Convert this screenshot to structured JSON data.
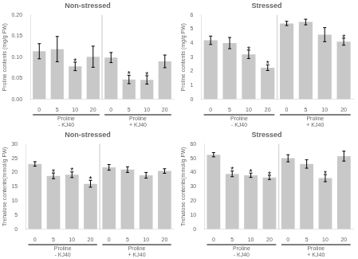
{
  "chart_data": [
    {
      "type": "bar",
      "title": "Non-stressed",
      "ylabel": "Proline contents (mg/g FW)",
      "categories": [
        "0",
        "5",
        "10",
        "20",
        "0",
        "5",
        "10",
        "20"
      ],
      "group_labels": [
        [
          "Proline",
          "- KJ40"
        ],
        [
          "Proline",
          "+ KJ40"
        ]
      ],
      "values": [
        0.114,
        0.119,
        0.078,
        0.101,
        0.099,
        0.047,
        0.046,
        0.09
      ],
      "errors": [
        0.018,
        0.03,
        0.01,
        0.025,
        0.012,
        0.01,
        0.01,
        0.015
      ],
      "annotations": [
        {
          "bar": 2,
          "text": "*"
        },
        {
          "bar": 5,
          "text": "*"
        },
        {
          "bar": 6,
          "text": "*"
        }
      ],
      "color": "#c8c8c8",
      "ylim": [
        0.0,
        0.2
      ],
      "yticks": [
        {
          "value": 0,
          "label": "0.00"
        },
        0.05,
        {
          "value": 0.1,
          "label": "0.10"
        },
        0.15,
        {
          "value": 0.2,
          "label": "0.20"
        }
      ],
      "grid": false
    },
    {
      "type": "bar",
      "title": "Stressed",
      "ylabel": "Proline contents (mg/g FW)",
      "categories": [
        "0",
        "5",
        "10",
        "20",
        "0",
        "5",
        "10",
        "20"
      ],
      "group_labels": [
        [
          "Proline",
          "- KJ40"
        ],
        [
          "Proline",
          "+ KJ40"
        ]
      ],
      "values": [
        4.2,
        4.0,
        3.2,
        2.25,
        5.4,
        5.5,
        4.6,
        4.1
      ],
      "errors": [
        0.3,
        0.4,
        0.3,
        0.2,
        0.15,
        0.2,
        0.5,
        0.25
      ],
      "annotations": [
        {
          "bar": 2,
          "text": "*"
        },
        {
          "bar": 3,
          "text": "*"
        },
        {
          "bar": 7,
          "text": "*"
        }
      ],
      "color": "#c8c8c8",
      "ylim": [
        0,
        6
      ],
      "yticks": [
        0,
        1,
        2,
        3,
        4,
        5,
        6
      ],
      "grid": false
    },
    {
      "type": "bar",
      "title": "Non-stressed",
      "ylabel": "Trehalose contents(mmol/g FW)",
      "categories": [
        "0",
        "5",
        "10",
        "20",
        "0",
        "5",
        "10",
        "20"
      ],
      "group_labels": [
        [
          "Proline",
          "- KJ40"
        ],
        [
          "Proline",
          "+ KJ40"
        ]
      ],
      "values": [
        23.0,
        18.8,
        19.2,
        16.0,
        21.8,
        21.0,
        19.0,
        20.5
      ],
      "errors": [
        0.8,
        1.0,
        1.0,
        1.2,
        1.0,
        1.0,
        1.0,
        0.8
      ],
      "annotations": [
        {
          "bar": 1,
          "text": "*"
        },
        {
          "bar": 2,
          "text": "*"
        },
        {
          "bar": 3,
          "text": "*"
        }
      ],
      "color": "#c8c8c8",
      "ylim": [
        0,
        30
      ],
      "yticks": [
        0,
        5,
        10,
        15,
        20,
        25,
        30
      ],
      "grid": false
    },
    {
      "type": "bar",
      "title": "Stressed",
      "ylabel": "Trehalose contents(mmol/g FW)",
      "categories": [
        "0",
        "5",
        "10",
        "20",
        "0",
        "5",
        "10",
        "20"
      ],
      "group_labels": [
        [
          "Proline",
          "- KJ40"
        ],
        [
          "Proline",
          "+ KJ40"
        ]
      ],
      "values": [
        52.5,
        39.0,
        38.0,
        36.5,
        50.0,
        46.0,
        36.0,
        51.5
      ],
      "errors": [
        1.5,
        2.0,
        1.5,
        1.5,
        2.5,
        3.0,
        2.5,
        3.5
      ],
      "annotations": [
        {
          "bar": 1,
          "text": "*"
        },
        {
          "bar": 2,
          "text": "*"
        },
        {
          "bar": 3,
          "text": "*"
        },
        {
          "bar": 6,
          "text": "*"
        }
      ],
      "color": "#c8c8c8",
      "ylim": [
        0,
        60
      ],
      "yticks": [
        0,
        10,
        20,
        30,
        40,
        50,
        60
      ],
      "grid": false
    }
  ]
}
